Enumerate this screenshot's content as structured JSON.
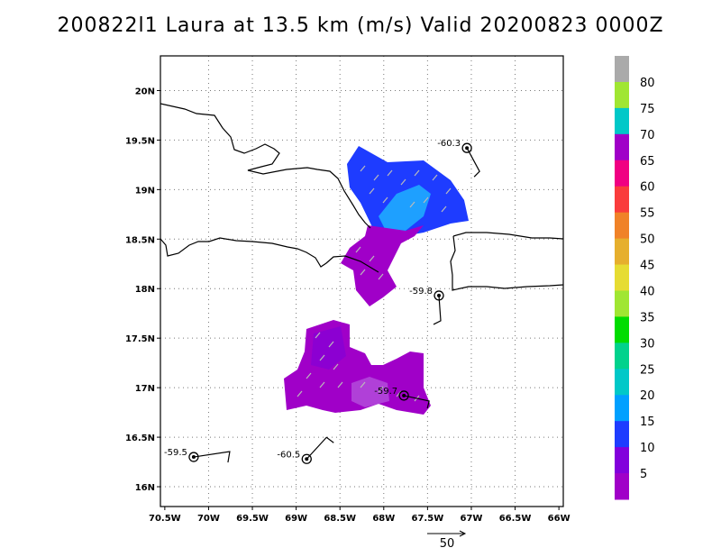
{
  "title": "200822l1 Laura at 13.5 km (m/s) Valid 20200823 0000Z",
  "chart_data": {
    "type": "heatmap",
    "title": "200822l1 Laura at 13.5 km (m/s) Valid 20200823 0000Z",
    "x_ticks": [
      "70.5W",
      "70W",
      "69.5W",
      "69W",
      "68.5W",
      "68W",
      "67.5W",
      "67W",
      "66.5W",
      "66W"
    ],
    "y_ticks": [
      "20N",
      "19.5N",
      "19N",
      "18.5N",
      "18N",
      "17.5N",
      "17N",
      "16.5N",
      "16N"
    ],
    "xlim": [
      -70.55,
      -65.95
    ],
    "ylim": [
      15.8,
      20.35
    ],
    "grid": true,
    "colorbar": {
      "labels": [
        "5",
        "10",
        "15",
        "20",
        "25",
        "30",
        "35",
        "40",
        "45",
        "50",
        "55",
        "60",
        "65",
        "70",
        "75",
        "80"
      ],
      "colors": [
        "#a000c8",
        "#8200dc",
        "#1e3cff",
        "#00a0ff",
        "#00c8c8",
        "#00d28c",
        "#00dc00",
        "#a0e632",
        "#e6dc32",
        "#e6af2d",
        "#f08228",
        "#fa3c3c",
        "#f00082",
        "#a000c8",
        "#00c8c8",
        "#a0e632",
        "#aaaaaa"
      ]
    },
    "dropsondes": [
      {
        "label": "-60.3",
        "lon": -67.05,
        "lat": 19.42
      },
      {
        "label": "-59.8",
        "lon": -67.37,
        "lat": 17.93
      },
      {
        "label": "-59.7",
        "lon": -67.77,
        "lat": 16.92
      },
      {
        "label": "-59.5",
        "lon": -70.17,
        "lat": 16.3
      },
      {
        "label": "-60.5",
        "lon": -68.88,
        "lat": 16.28
      }
    ],
    "reference_vector": "50"
  }
}
